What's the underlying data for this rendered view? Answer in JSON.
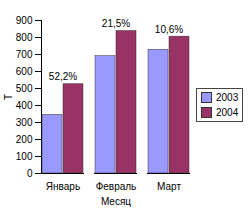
{
  "chart_data": {
    "type": "bar",
    "xlabel": "Месяц",
    "ylabel": "Т",
    "categories": [
      "Январь",
      "Февраль",
      "Март"
    ],
    "series": [
      {
        "name": "2003",
        "color": "#9999ff",
        "values": [
          345,
          690,
          728
        ]
      },
      {
        "name": "2004",
        "color": "#993366",
        "values": [
          525,
          838,
          805
        ]
      }
    ],
    "annotations": [
      "52,2%",
      "21,5%",
      "10,6%"
    ],
    "ylim": [
      0,
      900
    ],
    "yticks": [
      0,
      100,
      200,
      300,
      400,
      500,
      600,
      700,
      800,
      900
    ],
    "grid": false,
    "legend": "right"
  }
}
